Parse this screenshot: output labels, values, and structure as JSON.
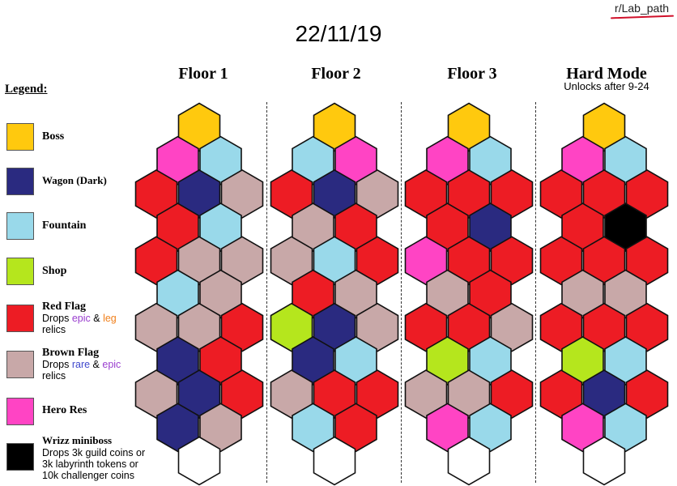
{
  "tag": "r/Lab_path",
  "date": "22/11/19",
  "legend_title": "Legend:",
  "colors": {
    "boss": "#ffc90e",
    "wagon": "#2a2a80",
    "fountain": "#99d9ea",
    "shop": "#b5e61d",
    "red": "#ed1c24",
    "brown": "#c8a8a8",
    "hero": "#ff44c4",
    "wrizz": "#000000",
    "empty": "#ffffff",
    "epic_text": "#9a3ecf",
    "leg_text": "#f07f1a",
    "rare_text": "#3f48cc"
  },
  "legend": {
    "boss": {
      "label": "Boss"
    },
    "wagon": {
      "label": "Wagon (Dark)"
    },
    "fountain": {
      "label": "Fountain"
    },
    "shop": {
      "label": "Shop"
    },
    "red": {
      "label": "Red Flag",
      "drops": "Drops",
      "epic": "epic",
      "amp": "&",
      "leg": "leg",
      "relics": "relics"
    },
    "brown": {
      "label": "Brown Flag",
      "drops": "Drops",
      "rare": "rare",
      "amp": "&",
      "epic": "epic",
      "relics": "relics"
    },
    "hero": {
      "label": "Hero Res"
    },
    "wrizz": {
      "label": "Wrizz miniboss",
      "line1": "Drops 3k guild coins or",
      "line2": "3k labyrinth tokens or",
      "line3": "10k challenger coins"
    }
  },
  "floors": [
    {
      "title": "Floor 1",
      "subtitle": "",
      "rows": [
        [
          "boss"
        ],
        [
          "hero",
          "fountain"
        ],
        [
          "red",
          "wagon",
          "brown"
        ],
        [
          "red",
          "fountain"
        ],
        [
          "red",
          "brown",
          "brown"
        ],
        [
          "fountain",
          "brown"
        ],
        [
          "brown",
          "brown",
          "red"
        ],
        [
          "wagon",
          "red"
        ],
        [
          "brown",
          "wagon",
          "red"
        ],
        [
          "wagon",
          "brown"
        ],
        [
          "empty"
        ]
      ]
    },
    {
      "title": "Floor 2",
      "subtitle": "",
      "rows": [
        [
          "boss"
        ],
        [
          "fountain",
          "hero"
        ],
        [
          "red",
          "wagon",
          "brown"
        ],
        [
          "brown",
          "red"
        ],
        [
          "brown",
          "fountain",
          "red"
        ],
        [
          "red",
          "brown"
        ],
        [
          "shop",
          "wagon",
          "brown"
        ],
        [
          "wagon",
          "fountain"
        ],
        [
          "brown",
          "red",
          "red"
        ],
        [
          "fountain",
          "red"
        ],
        [
          "empty"
        ]
      ]
    },
    {
      "title": "Floor 3",
      "subtitle": "",
      "rows": [
        [
          "boss"
        ],
        [
          "hero",
          "fountain"
        ],
        [
          "red",
          "red",
          "red"
        ],
        [
          "red",
          "wagon"
        ],
        [
          "hero",
          "red",
          "red"
        ],
        [
          "brown",
          "red"
        ],
        [
          "red",
          "red",
          "brown"
        ],
        [
          "shop",
          "fountain"
        ],
        [
          "brown",
          "brown",
          "red"
        ],
        [
          "hero",
          "fountain"
        ],
        [
          "empty"
        ]
      ]
    },
    {
      "title": "Hard Mode",
      "subtitle": "Unlocks after 9-24",
      "rows": [
        [
          "boss"
        ],
        [
          "hero",
          "fountain"
        ],
        [
          "red",
          "red",
          "red"
        ],
        [
          "red",
          "wrizz"
        ],
        [
          "red",
          "red",
          "red"
        ],
        [
          "brown",
          "brown"
        ],
        [
          "red",
          "red",
          "red"
        ],
        [
          "shop",
          "fountain"
        ],
        [
          "red",
          "wagon",
          "red"
        ],
        [
          "hero",
          "fountain"
        ],
        [
          "empty"
        ]
      ]
    }
  ]
}
